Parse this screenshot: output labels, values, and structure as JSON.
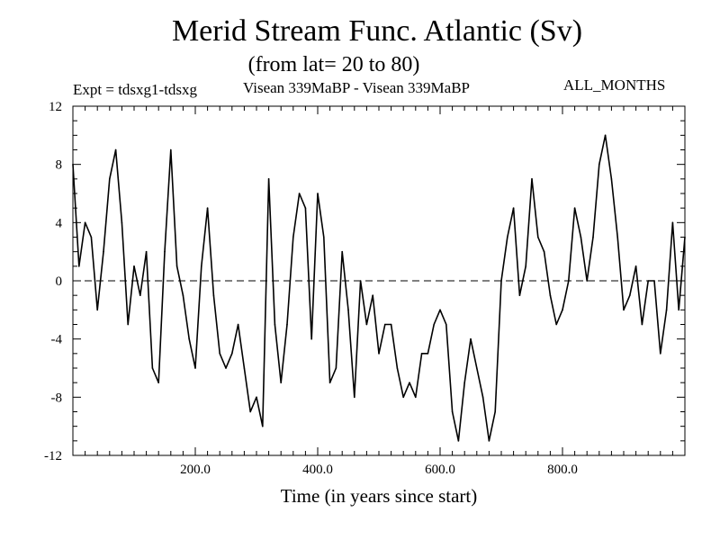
{
  "chart_data": {
    "type": "line",
    "title": "Merid Stream Func. Atlantic (Sv)",
    "subtitle": "(from lat= 20 to 80)",
    "experiment_label": "Expt = tdsxg1-tdsxg",
    "comparison_label": "Visean 339MaBP - Visean 339MaBP",
    "months_label": "ALL_MONTHS",
    "xlabel": "Time (in years since start)",
    "ylabel": "",
    "xlim": [
      0,
      1000
    ],
    "ylim": [
      -12,
      12
    ],
    "x_ticks": [
      200,
      400,
      600,
      800
    ],
    "x_tick_labels": [
      "200.0",
      "400.0",
      "600.0",
      "800.0"
    ],
    "y_ticks": [
      12,
      8,
      4,
      0,
      -4,
      -8,
      -12
    ],
    "y_tick_labels": [
      "12",
      "8",
      "4",
      "0",
      "-4",
      "-8",
      "-12"
    ],
    "zero_line": "dashed",
    "series": [
      {
        "name": "Merid Stream Func.",
        "x": [
          0,
          10,
          20,
          30,
          40,
          50,
          60,
          70,
          80,
          90,
          100,
          110,
          120,
          130,
          140,
          150,
          160,
          170,
          180,
          190,
          200,
          210,
          220,
          230,
          240,
          250,
          260,
          270,
          280,
          290,
          300,
          310,
          320,
          330,
          340,
          350,
          360,
          370,
          380,
          390,
          400,
          410,
          420,
          430,
          440,
          450,
          460,
          470,
          480,
          490,
          500,
          510,
          520,
          530,
          540,
          550,
          560,
          570,
          580,
          590,
          600,
          610,
          620,
          630,
          640,
          650,
          660,
          670,
          680,
          690,
          700,
          710,
          720,
          730,
          740,
          750,
          760,
          770,
          780,
          790,
          800,
          810,
          820,
          830,
          840,
          850,
          860,
          870,
          880,
          890,
          900,
          910,
          920,
          930,
          940,
          950,
          960,
          970,
          980,
          990,
          1000
        ],
        "values": [
          8,
          1,
          4,
          3,
          -2,
          2,
          7,
          9,
          4,
          -3,
          1,
          -1,
          2,
          -6,
          -7,
          2,
          9,
          1,
          -1,
          -4,
          -6,
          1,
          5,
          -1,
          -5,
          -6,
          -5,
          -3,
          -6,
          -9,
          -8,
          -10,
          7,
          -3,
          -7,
          -3,
          3,
          6,
          5,
          -4,
          6,
          3,
          -7,
          -6,
          2,
          -2,
          -8,
          0,
          -3,
          -1,
          -5,
          -3,
          -3,
          -6,
          -8,
          -7,
          -8,
          -5,
          -5,
          -3,
          -2,
          -3,
          -9,
          -11,
          -7,
          -4,
          -6,
          -8,
          -11,
          -9,
          0,
          3,
          5,
          -1,
          1,
          7,
          3,
          2,
          -1,
          -3,
          -2,
          0,
          5,
          3,
          0,
          3,
          8,
          10,
          7,
          3,
          -2,
          -1,
          1,
          -3,
          0,
          0,
          -5,
          -2,
          4,
          -2,
          3
        ]
      }
    ]
  }
}
